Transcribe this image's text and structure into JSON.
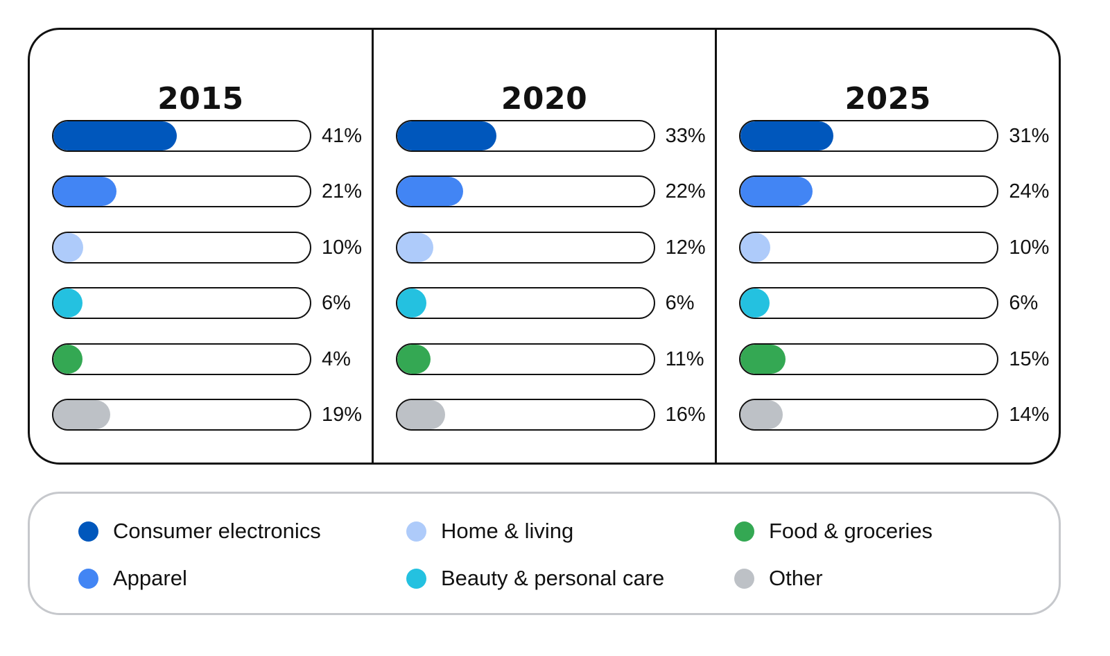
{
  "chart_data": {
    "type": "bar",
    "orientation": "horizontal",
    "unit": "%",
    "xlim": [
      0,
      100
    ],
    "categories": [
      "Consumer electronics",
      "Apparel",
      "Home & living",
      "Beauty & personal care",
      "Food & groceries",
      "Other"
    ],
    "colors": [
      "#0057bc",
      "#4285f4",
      "#aecbfa",
      "#24c1e0",
      "#34a853",
      "#bdc1c6"
    ],
    "panels": [
      {
        "year": "2015",
        "values": [
          41,
          21,
          10,
          6,
          4,
          19
        ],
        "labels": [
          "41%",
          "21%",
          "10%",
          "6%",
          "4%",
          "19%"
        ]
      },
      {
        "year": "2020",
        "values": [
          33,
          22,
          12,
          6,
          11,
          16
        ],
        "labels": [
          "33%",
          "22%",
          "12%",
          "6%",
          "11%",
          "16%"
        ]
      },
      {
        "year": "2025",
        "values": [
          31,
          24,
          10,
          6,
          15,
          14
        ],
        "labels": [
          "31%",
          "24%",
          "10%",
          "6%",
          "15%",
          "14%"
        ]
      }
    ],
    "legend": {
      "placement": "bottom",
      "items": [
        {
          "label": "Consumer electronics",
          "color": "#0057bc",
          "icon": "circle-icon"
        },
        {
          "label": "Apparel",
          "color": "#4285f4",
          "icon": "circle-icon"
        },
        {
          "label": "Home & living",
          "color": "#aecbfa",
          "icon": "circle-icon"
        },
        {
          "label": "Beauty & personal care",
          "color": "#24c1e0",
          "icon": "circle-icon"
        },
        {
          "label": "Food & groceries",
          "color": "#34a853",
          "icon": "circle-icon"
        },
        {
          "label": "Other",
          "color": "#bdc1c6",
          "icon": "circle-icon"
        }
      ]
    }
  }
}
